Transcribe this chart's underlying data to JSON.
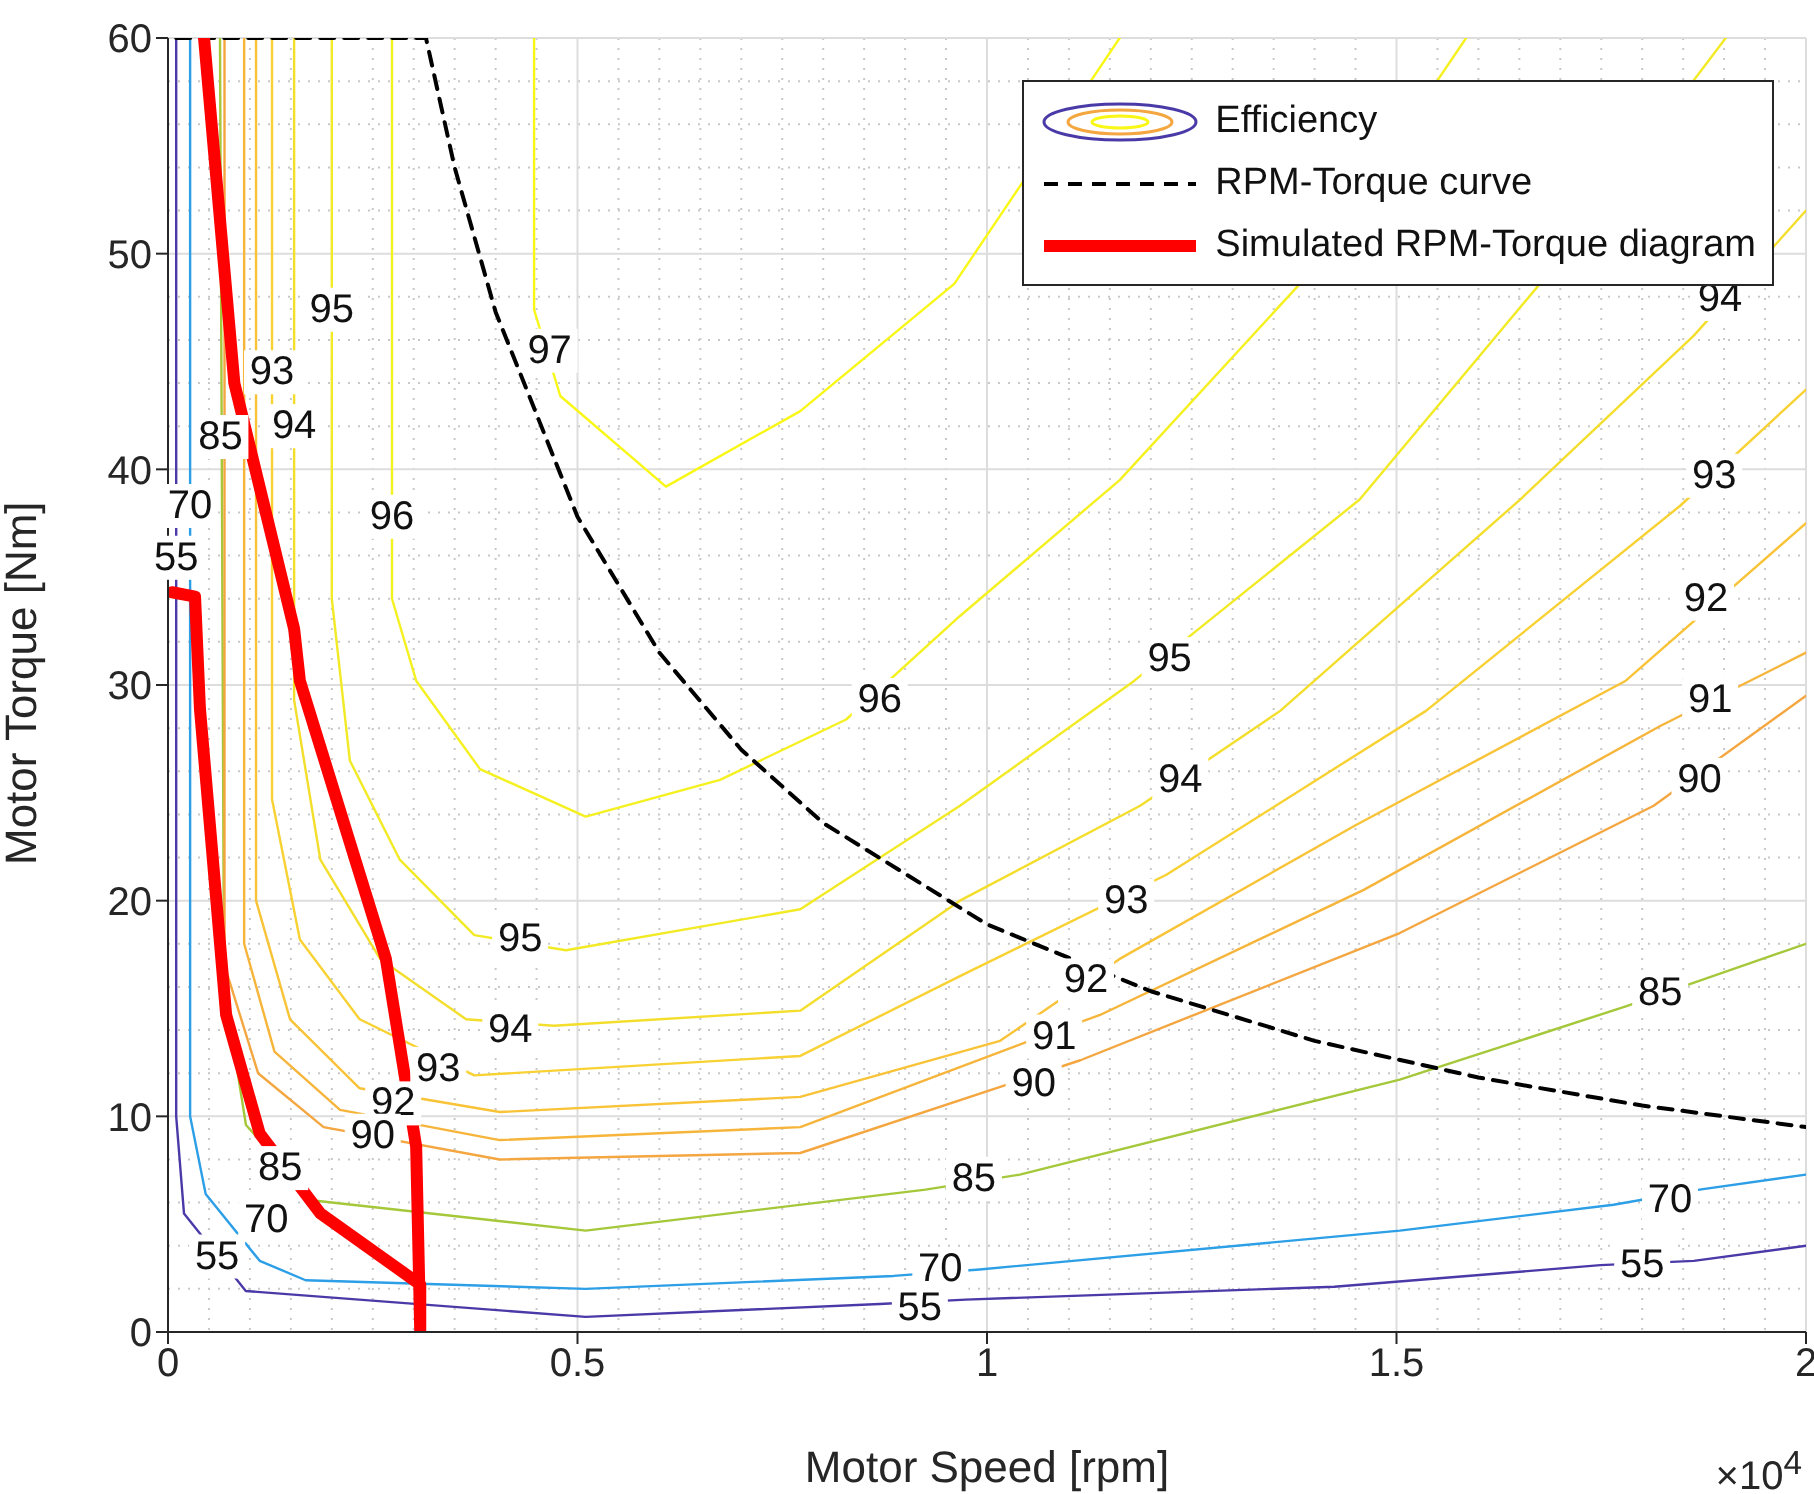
{
  "chart_data": {
    "type": "line",
    "xlabel": "Motor Speed [rpm]",
    "ylabel": "Motor Torque [Nm]",
    "xlim": [
      0,
      2
    ],
    "xticks": [
      0,
      0.5,
      1,
      1.5,
      2
    ],
    "ylim": [
      0,
      60
    ],
    "yticks": [
      0,
      10,
      20,
      30,
      40,
      50,
      60
    ],
    "grid": true,
    "legend": "top right",
    "line_style": "solid",
    "marker": "none",
    "series": [
      {
        "name": "Efficiency",
        "color": "#4a3aa8",
        "x": [
          0.01,
          0.01,
          0.0195,
          0.095,
          0.51,
          0.869,
          0.974,
          1.424,
          1.749,
          1.863,
          2.0
        ],
        "values": [
          60,
          10,
          5.5,
          1.9,
          0.7,
          1.3,
          1.5,
          2.1,
          3.1,
          3.3,
          4.0
        ]
      },
      {
        "color": "#2c9fe6",
        "x": [
          0.027,
          0.027,
          0.046,
          0.112,
          0.168,
          0.51,
          0.886,
          0.991,
          1.504,
          1.765,
          1.87,
          2.0
        ],
        "values": [
          60,
          10,
          6.4,
          3.3,
          2.4,
          2.0,
          2.6,
          2.9,
          4.7,
          5.9,
          6.6,
          7.3
        ]
      },
      {
        "color": "#a5c83a",
        "x": [
          0.0635,
          0.0684,
          0.0952,
          0.178,
          0.51,
          0.925,
          1.04,
          1.504,
          1.78,
          2.0
        ],
        "values": [
          60,
          16,
          9.6,
          6.1,
          4.7,
          6.6,
          7.3,
          11.7,
          15.1,
          18.0
        ]
      },
      {
        "color": "#f4a640",
        "x": [
          0.069,
          0.069,
          0.11,
          0.19,
          0.405,
          0.772,
          1.114,
          1.504,
          1.814,
          2.0
        ],
        "values": [
          60,
          17,
          12,
          9.5,
          8.0,
          8.3,
          12.6,
          18.5,
          24.4,
          29.5
        ]
      },
      {
        "color": "#f6b53a",
        "x": [
          0.093,
          0.093,
          0.13,
          0.21,
          0.405,
          0.772,
          1.08,
          1.138,
          1.46,
          1.822,
          2.0
        ],
        "values": [
          60,
          18,
          13,
          10.3,
          8.9,
          9.5,
          13.9,
          14.7,
          20.5,
          28.1,
          31.5
        ]
      },
      {
        "color": "#f9c338",
        "x": [
          0.1075,
          0.1075,
          0.149,
          0.234,
          0.405,
          0.772,
          1.016,
          1.162,
          1.45,
          1.78,
          2.0
        ],
        "values": [
          60,
          20,
          14.5,
          11.3,
          10.2,
          10.9,
          13.5,
          17.3,
          23.5,
          30.2,
          37.5
        ]
      },
      {
        "color": "#f8d133",
        "x": [
          0.127,
          0.127,
          0.161,
          0.234,
          0.374,
          0.772,
          0.967,
          1.219,
          1.536,
          1.846,
          2.0
        ],
        "values": [
          60,
          24.7,
          18.2,
          14.5,
          11.9,
          12.8,
          16.5,
          21.2,
          28.8,
          38.3,
          43.7
        ]
      },
      {
        "color": "#f4de2c",
        "x": [
          0.154,
          0.154,
          0.186,
          0.259,
          0.364,
          0.471,
          0.772,
          0.967,
          1.187,
          1.358,
          1.651,
          1.863,
          2.0
        ],
        "values": [
          60,
          29.3,
          21.9,
          17.3,
          14.5,
          14.2,
          14.9,
          20.0,
          24.4,
          28.8,
          38.6,
          46.2,
          52.0
        ]
      },
      {
        "color": "#f2ea25",
        "x": [
          0.2,
          0.2,
          0.222,
          0.283,
          0.374,
          0.486,
          0.772,
          0.967,
          1.18,
          1.455,
          1.675,
          1.902
        ],
        "values": [
          60,
          34,
          26.5,
          21.9,
          18.4,
          17.7,
          19.6,
          24.4,
          30.2,
          38.6,
          48.6,
          60
        ]
      },
      {
        "color": "#f5f020",
        "x": [
          0.2735,
          0.2735,
          0.303,
          0.381,
          0.51,
          0.674,
          0.828,
          0.967,
          1.162,
          1.382,
          1.585
        ],
        "values": [
          60,
          34.0,
          30.2,
          26.1,
          23.9,
          25.6,
          28.4,
          33.2,
          39.5,
          48.6,
          60
        ]
      },
      {
        "color": "#f9f716",
        "x": [
          0.447,
          0.447,
          0.479,
          0.608,
          0.772,
          0.96,
          1.162
        ],
        "values": [
          60,
          47.4,
          43.4,
          39.2,
          42.7,
          48.6,
          60
        ]
      },
      {
        "name": "RPM-Torque curve",
        "color": "#000000",
        "line_style": "dashed",
        "x": [
          0.01,
          0.315,
          0.35,
          0.4,
          0.5,
          0.6,
          0.7,
          0.8,
          1.0,
          1.2,
          1.4,
          1.6,
          1.8,
          2.0
        ],
        "values": [
          60,
          60,
          54,
          47.3,
          37.8,
          31.5,
          27,
          23.6,
          18.9,
          15.8,
          13.5,
          11.8,
          10.5,
          9.5
        ]
      },
      {
        "name": "Simulated RPM-Torque diagram",
        "color": "#ff0000",
        "x": [
          0.044,
          0.081,
          0.154,
          0.161,
          0.266,
          0.303,
          0.308,
          0.308,
          0.186,
          0.112,
          0.071,
          0.039,
          0.033,
          0.005
        ],
        "values": [
          60,
          44,
          32.6,
          30.2,
          17.3,
          8.6,
          0,
          2.2,
          5.5,
          9.2,
          14.7,
          28.9,
          34.1,
          34.3
        ]
      }
    ],
    "annotations": [
      {
        "text": "97",
        "x": 0.466,
        "y": 45.5
      },
      {
        "text": "96",
        "x": 0.2735,
        "y": 37.8
      },
      {
        "text": "96",
        "x": 0.869,
        "y": 29.3
      },
      {
        "text": "95",
        "x": 0.2,
        "y": 47.4
      },
      {
        "text": "95",
        "x": 0.43,
        "y": 18.2
      },
      {
        "text": "95",
        "x": 1.223,
        "y": 31.2
      },
      {
        "text": "94",
        "x": 0.154,
        "y": 42
      },
      {
        "text": "94",
        "x": 0.418,
        "y": 14.0
      },
      {
        "text": "94",
        "x": 1.236,
        "y": 25.6
      },
      {
        "text": "94",
        "x": 1.895,
        "y": 47.9
      },
      {
        "text": "93",
        "x": 0.127,
        "y": 44.5
      },
      {
        "text": "93",
        "x": 0.33,
        "y": 12.2
      },
      {
        "text": "93",
        "x": 1.17,
        "y": 20.0
      },
      {
        "text": "93",
        "x": 1.888,
        "y": 39.7
      },
      {
        "text": "92",
        "x": 0.275,
        "y": 10.6
      },
      {
        "text": "92",
        "x": 1.121,
        "y": 16.3
      },
      {
        "text": "92",
        "x": 1.878,
        "y": 34.0
      },
      {
        "text": "91",
        "x": 1.082,
        "y": 13.7
      },
      {
        "text": "91",
        "x": 1.883,
        "y": 29.3
      },
      {
        "text": "90",
        "x": 0.25,
        "y": 9.1
      },
      {
        "text": "90",
        "x": 1.057,
        "y": 11.5
      },
      {
        "text": "90",
        "x": 1.87,
        "y": 25.6
      },
      {
        "text": "85",
        "x": 0.064,
        "y": 41.5
      },
      {
        "text": "85",
        "x": 0.137,
        "y": 7.6
      },
      {
        "text": "85",
        "x": 0.984,
        "y": 7.1
      },
      {
        "text": "85",
        "x": 1.822,
        "y": 15.7
      },
      {
        "text": "70",
        "x": 0.027,
        "y": 38.3
      },
      {
        "text": "70",
        "x": 0.12,
        "y": 5.2
      },
      {
        "text": "70",
        "x": 0.943,
        "y": 2.9
      },
      {
        "text": "70",
        "x": 1.834,
        "y": 6.1
      },
      {
        "text": "55",
        "x": 0.01,
        "y": 35.9
      },
      {
        "text": "55",
        "x": 0.06,
        "y": 3.5
      },
      {
        "text": "55",
        "x": 0.918,
        "y": 1.1
      },
      {
        "text": "55",
        "x": 1.8,
        "y": 3.1
      },
      "×10$^{4}$"
    ]
  }
}
